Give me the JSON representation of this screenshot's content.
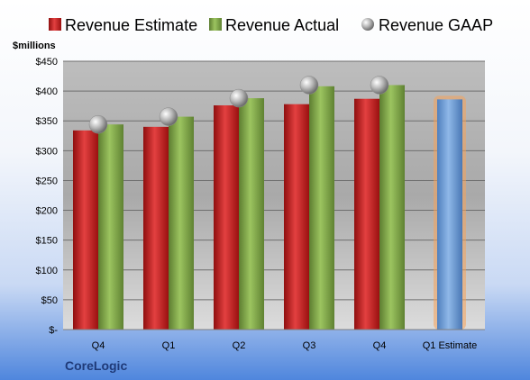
{
  "company": "CoreLogic",
  "colors": {
    "estimate": "#cc1f1f",
    "actual": "#7fa84a",
    "gaap": "#a8a8a8",
    "projection": "#6f9fd6",
    "projection_glow": "#f5a35a"
  },
  "chart_data": {
    "type": "bar",
    "ylabel": "$millions",
    "ylim": [
      0,
      450
    ],
    "yticks": [
      "$-",
      "$50",
      "$100",
      "$150",
      "$200",
      "$250",
      "$300",
      "$350",
      "$400",
      "$450"
    ],
    "grid": true,
    "legend_position": "top",
    "categories": [
      "Q4",
      "Q1",
      "Q2",
      "Q3",
      "Q4",
      "Q1 Estimate"
    ],
    "series": [
      {
        "name": "Revenue Estimate",
        "kind": "bar",
        "values": [
          334,
          340,
          376,
          378,
          387,
          null
        ]
      },
      {
        "name": "Revenue Actual",
        "kind": "bar",
        "values": [
          344,
          357,
          388,
          408,
          410,
          null
        ]
      },
      {
        "name": "Revenue GAAP",
        "kind": "marker",
        "values": [
          344,
          357,
          388,
          410,
          410,
          null
        ]
      }
    ],
    "projection": {
      "category": "Q1 Estimate",
      "value": 386
    }
  }
}
